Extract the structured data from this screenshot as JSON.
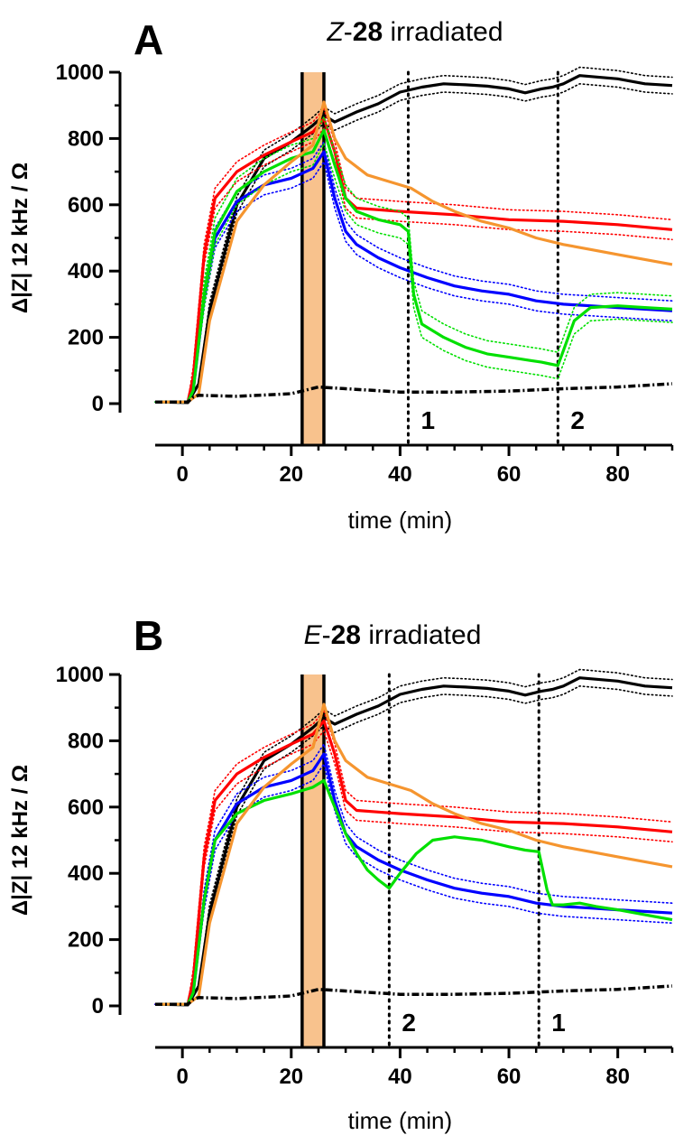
{
  "chart_data": [
    {
      "panel": "A",
      "type": "line",
      "title_prefix": "Z",
      "title_compound": "28",
      "title_suffix": "irradiated",
      "xlabel": "time  (min)",
      "ylabel": "Δ|Z| 12 kHz / Ω",
      "xlim": [
        -5,
        90
      ],
      "ylim": [
        0,
        1000
      ],
      "xticks": [
        0,
        20,
        40,
        60,
        80
      ],
      "yticks": [
        0,
        200,
        400,
        600,
        800,
        1000
      ],
      "irradiation_band": [
        22,
        26
      ],
      "markers": [
        {
          "x": 41.5,
          "label": "1"
        },
        {
          "x": 69,
          "label": "2"
        }
      ],
      "series": [
        {
          "color": "#000000",
          "style": "solid",
          "error_band": 25,
          "x": [
            -5,
            1,
            3,
            5,
            10,
            15,
            20,
            24,
            26,
            28,
            32,
            36,
            40,
            44,
            48,
            52,
            56,
            60,
            63,
            66,
            68,
            70,
            73,
            80,
            85,
            90
          ],
          "y": [
            5,
            3,
            60,
            280,
            600,
            740,
            790,
            840,
            870,
            850,
            880,
            905,
            940,
            955,
            965,
            962,
            958,
            950,
            938,
            950,
            955,
            965,
            990,
            980,
            965,
            960
          ]
        },
        {
          "color": "#ff0000",
          "style": "solid",
          "error_band": 30,
          "x": [
            -5,
            1,
            2,
            4,
            6,
            10,
            15,
            20,
            24,
            26,
            28,
            30,
            32,
            36,
            40,
            50,
            60,
            70,
            80,
            90
          ],
          "y": [
            5,
            5,
            80,
            450,
            620,
            700,
            750,
            790,
            820,
            860,
            760,
            620,
            590,
            585,
            580,
            570,
            555,
            550,
            540,
            525
          ]
        },
        {
          "color": "#0000ff",
          "style": "solid",
          "error_band": 30,
          "x": [
            -5,
            1,
            2,
            4,
            6,
            10,
            15,
            20,
            24,
            26,
            28,
            30,
            32,
            36,
            40,
            45,
            50,
            55,
            60,
            65,
            70,
            75,
            80,
            90
          ],
          "y": [
            5,
            5,
            40,
            320,
            500,
            610,
            660,
            680,
            710,
            760,
            620,
            520,
            480,
            440,
            410,
            380,
            355,
            340,
            330,
            310,
            300,
            295,
            290,
            280
          ]
        },
        {
          "color": "#00e000",
          "style": "solid",
          "error_band": 40,
          "x": [
            -5,
            1,
            2,
            4,
            6,
            10,
            15,
            20,
            24,
            26,
            28,
            30,
            32,
            36,
            40,
            41.5,
            42.5,
            44,
            48,
            52,
            56,
            60,
            64,
            66,
            67.5,
            69,
            70,
            72,
            75,
            80,
            85,
            90
          ],
          "y": [
            5,
            5,
            40,
            330,
            520,
            640,
            700,
            740,
            760,
            825,
            720,
            620,
            580,
            555,
            540,
            520,
            330,
            240,
            200,
            170,
            150,
            140,
            130,
            125,
            120,
            115,
            160,
            250,
            290,
            295,
            290,
            285
          ]
        },
        {
          "color": "#f5952f",
          "style": "solid",
          "error_band": 0,
          "x": [
            -5,
            1,
            3,
            5,
            10,
            15,
            20,
            24,
            26,
            28,
            30,
            34,
            38,
            42,
            46,
            50,
            55,
            60,
            65,
            70,
            75,
            80,
            85,
            90
          ],
          "y": [
            5,
            5,
            30,
            250,
            550,
            660,
            730,
            780,
            910,
            800,
            740,
            690,
            670,
            650,
            610,
            580,
            550,
            530,
            500,
            480,
            465,
            450,
            435,
            420
          ]
        },
        {
          "color": "#000000",
          "style": "dashdot",
          "error_band": 0,
          "x": [
            -5,
            1,
            2,
            3,
            10,
            20,
            25,
            30,
            40,
            50,
            60,
            70,
            80,
            90
          ],
          "y": [
            5,
            5,
            20,
            25,
            22,
            30,
            50,
            45,
            35,
            35,
            38,
            45,
            50,
            60
          ]
        }
      ]
    },
    {
      "panel": "B",
      "type": "line",
      "title_prefix": "E",
      "title_compound": "28",
      "title_suffix": "irradiated",
      "xlabel": "time  (min)",
      "ylabel": "Δ|Z| 12 kHz / Ω",
      "xlim": [
        -5,
        90
      ],
      "ylim": [
        0,
        1000
      ],
      "xticks": [
        0,
        20,
        40,
        60,
        80
      ],
      "yticks": [
        0,
        200,
        400,
        600,
        800,
        1000
      ],
      "irradiation_band": [
        22,
        26
      ],
      "markers": [
        {
          "x": 38,
          "label": "2"
        },
        {
          "x": 65.5,
          "label": "1"
        }
      ],
      "series": [
        {
          "color": "#000000",
          "style": "solid",
          "error_band": 25,
          "x": [
            -5,
            1,
            3,
            5,
            10,
            15,
            20,
            24,
            26,
            28,
            32,
            36,
            40,
            44,
            48,
            52,
            56,
            60,
            63,
            66,
            68,
            70,
            73,
            80,
            85,
            90
          ],
          "y": [
            5,
            3,
            60,
            280,
            600,
            740,
            790,
            840,
            870,
            850,
            880,
            905,
            940,
            955,
            965,
            962,
            958,
            950,
            938,
            950,
            955,
            965,
            990,
            980,
            965,
            960
          ]
        },
        {
          "color": "#ff0000",
          "style": "solid",
          "error_band": 30,
          "x": [
            -5,
            1,
            2,
            4,
            6,
            10,
            15,
            20,
            24,
            26,
            28,
            30,
            32,
            36,
            40,
            50,
            60,
            70,
            80,
            90
          ],
          "y": [
            5,
            5,
            80,
            450,
            620,
            700,
            750,
            790,
            820,
            860,
            760,
            620,
            590,
            585,
            580,
            570,
            555,
            550,
            540,
            525
          ]
        },
        {
          "color": "#0000ff",
          "style": "solid",
          "error_band": 30,
          "x": [
            -5,
            1,
            2,
            4,
            6,
            10,
            15,
            20,
            24,
            26,
            28,
            30,
            32,
            36,
            40,
            45,
            50,
            55,
            60,
            65,
            70,
            75,
            80,
            90
          ],
          "y": [
            5,
            5,
            40,
            320,
            500,
            610,
            660,
            680,
            710,
            760,
            620,
            520,
            480,
            440,
            410,
            380,
            355,
            340,
            330,
            310,
            300,
            295,
            290,
            280
          ]
        },
        {
          "color": "#00e000",
          "style": "solid",
          "error_band": 0,
          "x": [
            -5,
            1,
            2,
            4,
            6,
            10,
            15,
            20,
            24,
            26,
            28,
            30,
            32,
            34,
            36,
            38,
            40,
            43,
            46,
            50,
            55,
            60,
            63,
            65.5,
            67,
            68,
            70,
            73,
            76,
            80,
            85,
            90
          ],
          "y": [
            5,
            5,
            40,
            320,
            500,
            580,
            620,
            640,
            660,
            680,
            600,
            520,
            460,
            410,
            380,
            355,
            400,
            460,
            500,
            510,
            500,
            480,
            470,
            465,
            350,
            305,
            305,
            310,
            300,
            290,
            275,
            260
          ]
        },
        {
          "color": "#f5952f",
          "style": "solid",
          "error_band": 0,
          "x": [
            -5,
            1,
            3,
            5,
            10,
            15,
            20,
            24,
            26,
            28,
            30,
            34,
            38,
            42,
            46,
            50,
            55,
            60,
            65,
            70,
            75,
            80,
            85,
            90
          ],
          "y": [
            5,
            5,
            30,
            250,
            550,
            660,
            730,
            780,
            910,
            800,
            740,
            690,
            670,
            650,
            610,
            580,
            550,
            530,
            500,
            480,
            465,
            450,
            435,
            420
          ]
        },
        {
          "color": "#000000",
          "style": "dashdot",
          "error_band": 0,
          "x": [
            -5,
            1,
            2,
            3,
            10,
            20,
            25,
            30,
            40,
            50,
            60,
            70,
            80,
            90
          ],
          "y": [
            5,
            5,
            20,
            25,
            22,
            30,
            50,
            45,
            35,
            35,
            38,
            45,
            50,
            60
          ]
        }
      ]
    }
  ]
}
